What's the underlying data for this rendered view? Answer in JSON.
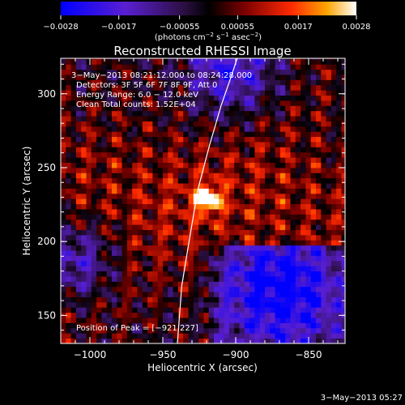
{
  "chart_data": {
    "type": "heatmap",
    "title": "Reconstructed RHESSI Image",
    "xlabel": "Heliocentric X (arcsec)",
    "ylabel": "Heliocentric Y (arcsec)",
    "xlim": [
      -1020,
      -825
    ],
    "ylim": [
      131,
      324
    ],
    "x_ticks": [
      -1000,
      -950,
      -900,
      -850
    ],
    "y_ticks": [
      150,
      200,
      250,
      300
    ],
    "x_tick_labels": [
      "−1000",
      "−950",
      "−900",
      "−850"
    ],
    "y_tick_labels": [
      "150",
      "200",
      "250",
      "300"
    ],
    "colorbar": {
      "min": -0.0028,
      "max": 0.0028,
      "ticks": [
        -0.0028,
        -0.0017,
        -0.00055,
        0.00055,
        0.0017,
        0.0028
      ],
      "tick_labels": [
        "−0.0028",
        "−0.0017",
        "−0.00055",
        "0.00055",
        "0.0017",
        "0.0028"
      ],
      "unit_label": "(photons cm",
      "unit_exp1": "−2",
      "unit_mid1": " s",
      "unit_exp2": "−1",
      "unit_mid2": " asec",
      "unit_exp3": "−2",
      "unit_end": ")"
    },
    "peak": {
      "x": -921,
      "y": 227
    },
    "limb_points": [
      [
        -940,
        131
      ],
      [
        -937,
        170
      ],
      [
        -932,
        200
      ],
      [
        -926,
        235
      ],
      [
        -918,
        265
      ],
      [
        -910,
        292
      ],
      [
        -903,
        312
      ],
      [
        -899,
        324
      ]
    ],
    "annotations": [
      "3−May−2013 08:21:12.000 to 08:24:28.000",
      "Detectors: 3F 5F 6F 7F 8F 9F, Att 0",
      "Energy Range: 6.0 − 12.0 keV",
      "Clean    Total counts: 1.52E+04"
    ],
    "peak_label": "Position of Peak = [−921,227]",
    "timestamp": "3−May−2013 05:27"
  }
}
